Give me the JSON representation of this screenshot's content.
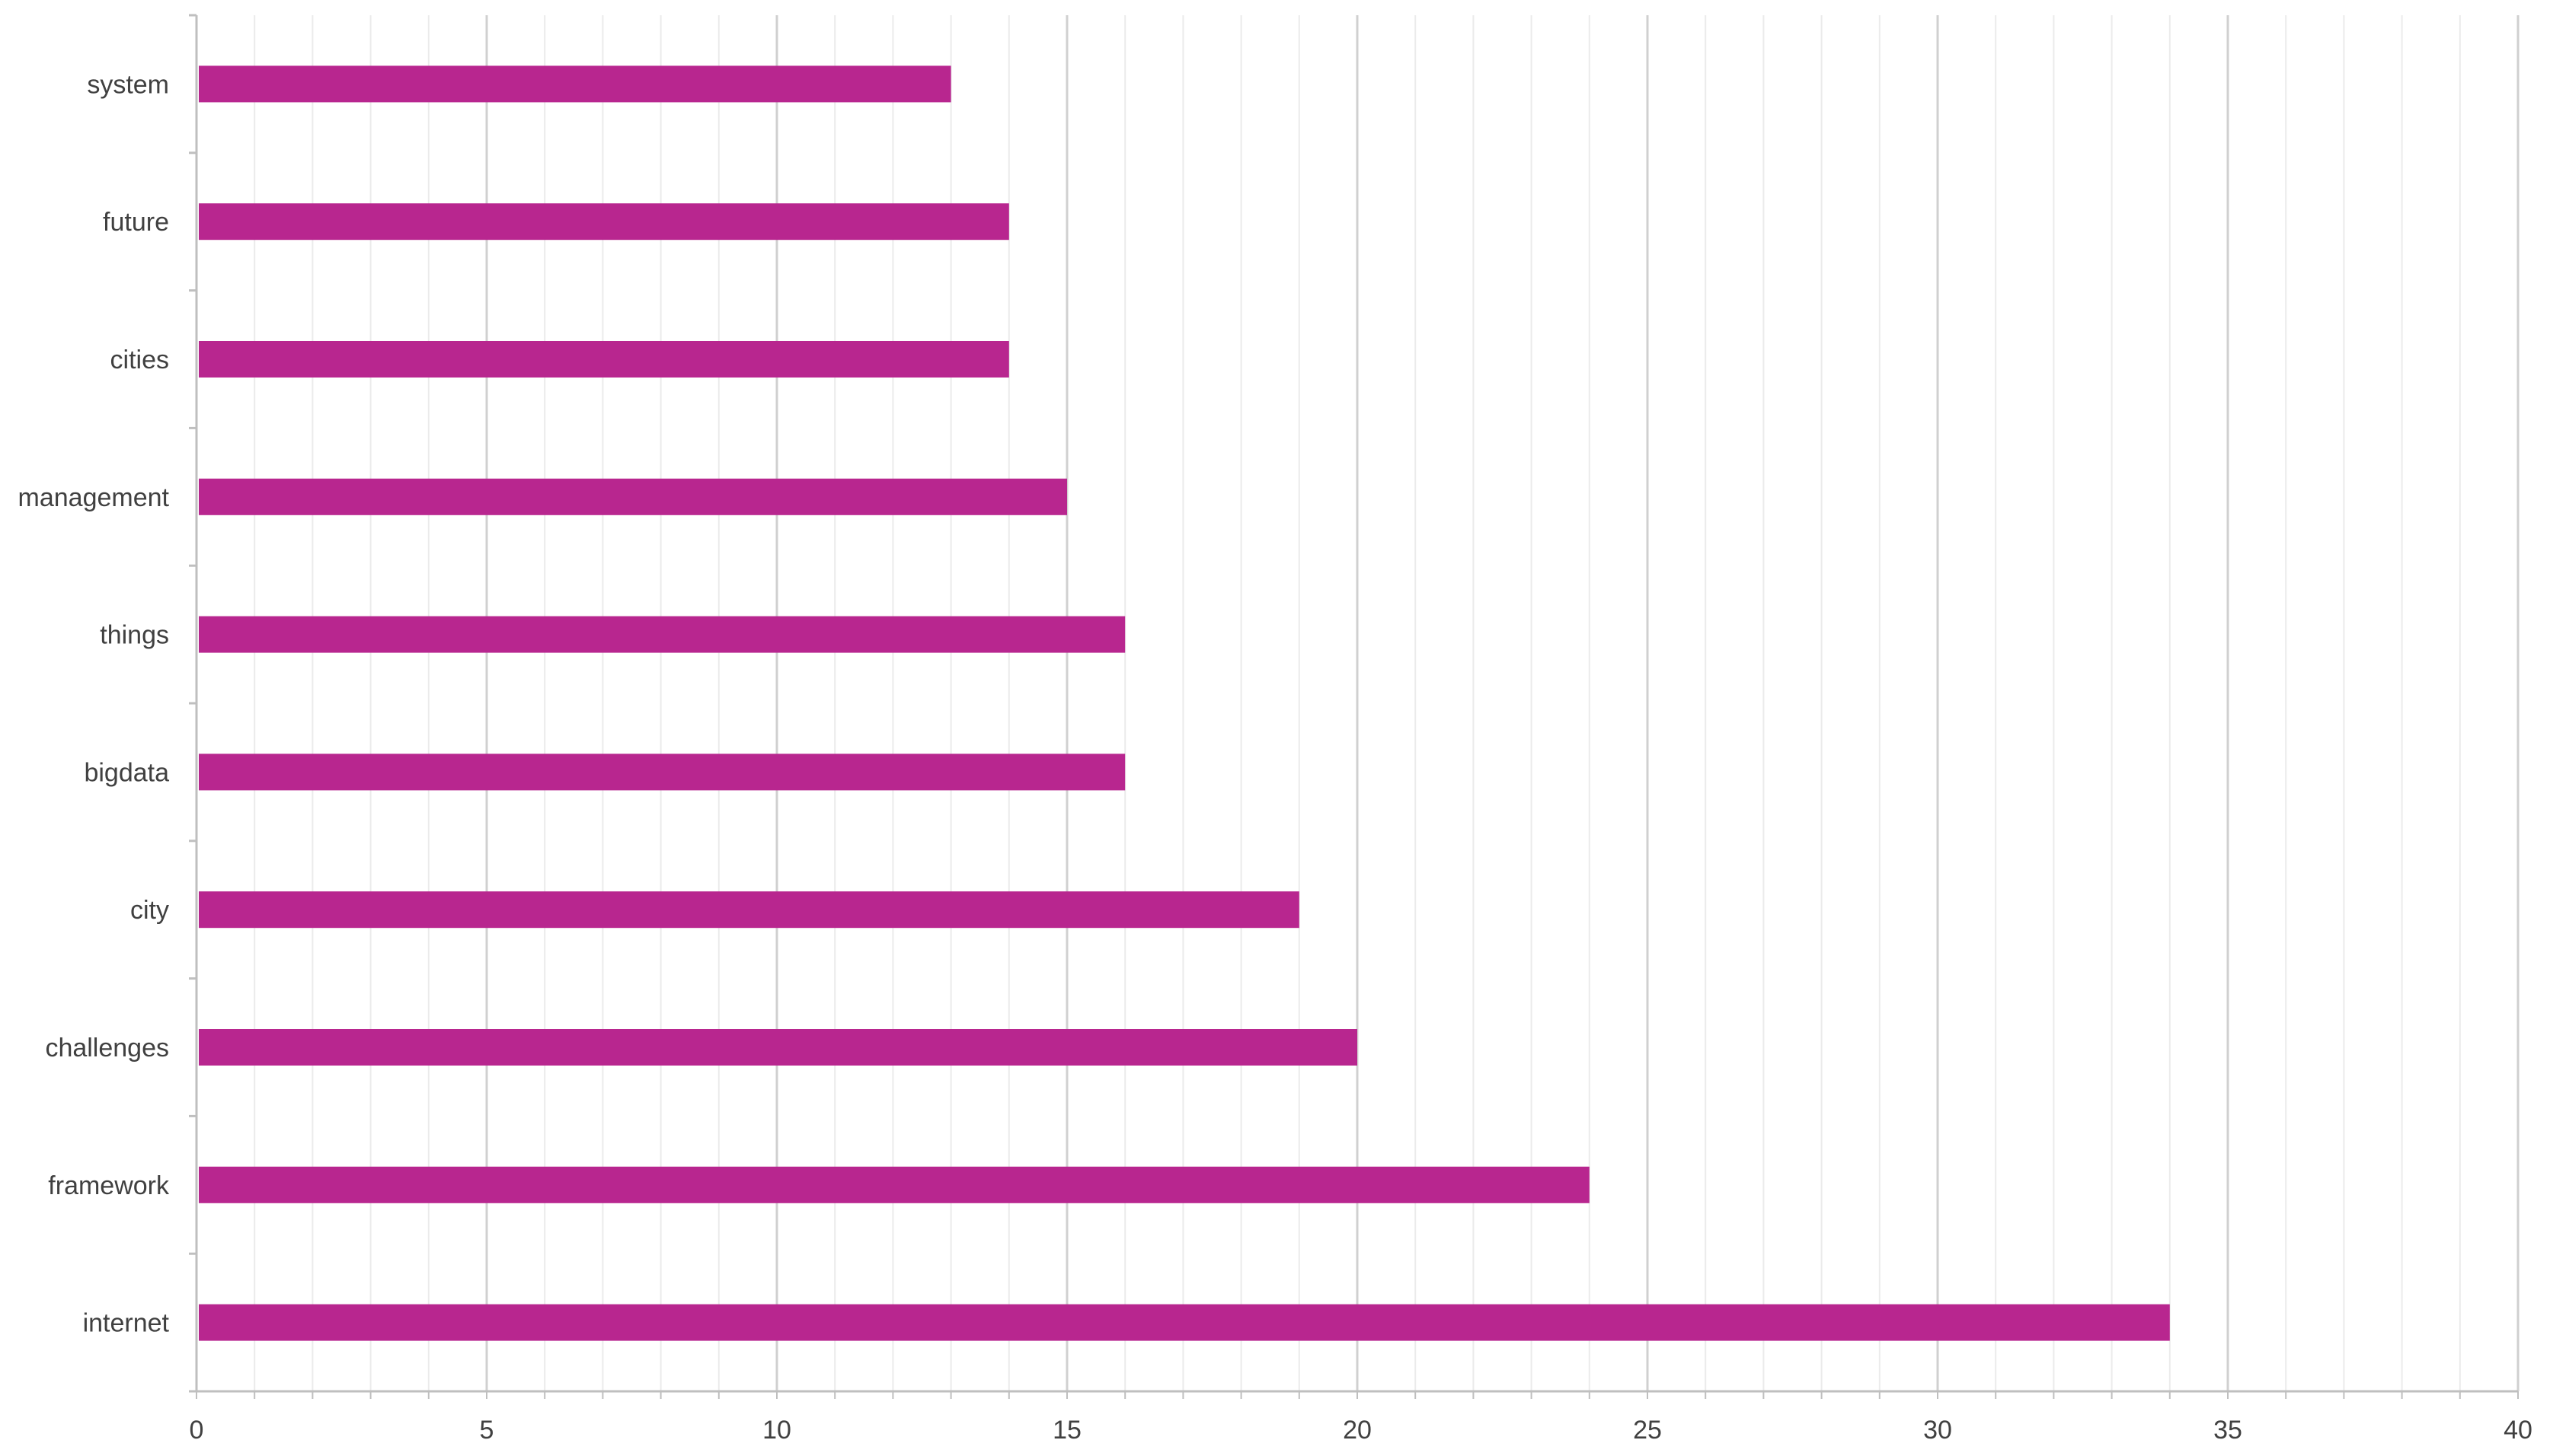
{
  "chart_data": {
    "type": "bar",
    "orientation": "horizontal",
    "categories": [
      "system",
      "future",
      "cities",
      "management",
      "things",
      "bigdata",
      "city",
      "challenges",
      "framework",
      "internet"
    ],
    "values": [
      13,
      14,
      14,
      15,
      16,
      16,
      19,
      20,
      24,
      34
    ],
    "xlim": [
      0,
      40
    ],
    "x_major_ticks": [
      0,
      5,
      10,
      15,
      20,
      25,
      30,
      35,
      40
    ],
    "x_minor_step": 1,
    "grid": "vertical major and minor",
    "legend": "none",
    "title": "",
    "xlabel": "",
    "ylabel": "",
    "bar_color": "#B8268F",
    "major_grid_color": "#D0D0D0",
    "minor_grid_color": "#EBEBEB",
    "axis_color": "#BFBFBF"
  }
}
